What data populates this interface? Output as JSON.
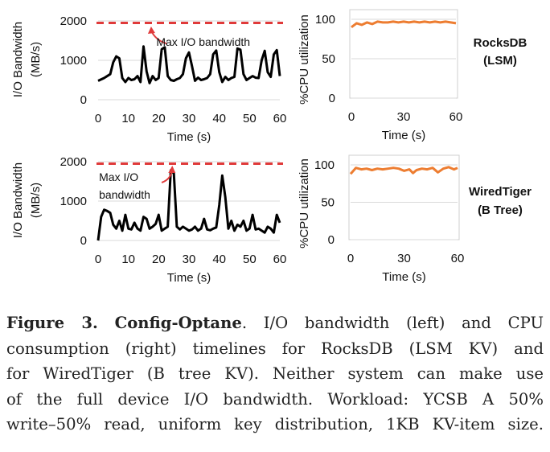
{
  "colors": {
    "io_line": "#000000",
    "cpu_line": "#ED7D31",
    "max_line": "#E03A3A",
    "grid": "#D9D9D9"
  },
  "chart_data": [
    {
      "type": "line",
      "system": "rocksdb",
      "xlabel": "Time (s)",
      "ylabel": "I/O Bandwidth (MB/s)",
      "ylabel_lines": [
        "I/O Bandwidth",
        "(MB/s)"
      ],
      "x_ticks": [
        "0",
        "10",
        "20",
        "30",
        "40",
        "50",
        "60"
      ],
      "y_ticks": [
        "0",
        "1000",
        "2000"
      ],
      "xlim": [
        0,
        60
      ],
      "ylim": [
        0,
        2000
      ],
      "max_bandwidth": 1950,
      "annotation": [
        "Max I/O bandwidth"
      ],
      "series": [
        {
          "x": [
            0,
            2,
            4,
            5,
            6,
            7,
            8,
            9,
            10,
            11,
            12,
            13,
            14,
            15,
            16,
            17,
            18,
            19,
            20,
            21,
            22,
            23,
            24,
            25,
            26,
            27,
            28,
            29,
            30,
            31,
            32,
            33,
            34,
            35,
            36,
            37,
            38,
            39,
            40,
            41,
            42,
            43,
            44,
            45,
            46,
            47,
            48,
            49,
            50,
            51,
            52,
            53,
            54,
            55,
            56,
            57,
            58,
            59,
            60
          ],
          "y": [
            480,
            550,
            650,
            950,
            1100,
            1050,
            550,
            450,
            550,
            500,
            520,
            600,
            450,
            1350,
            720,
            420,
            600,
            500,
            550,
            1280,
            1330,
            600,
            500,
            480,
            520,
            550,
            650,
            1050,
            1200,
            850,
            480,
            560,
            500,
            520,
            550,
            650,
            1150,
            1250,
            700,
            450,
            580,
            500,
            550,
            580,
            1300,
            1270,
            650,
            500,
            550,
            600,
            560,
            550,
            1000,
            1240,
            700,
            580,
            1150,
            1260,
            600
          ]
        }
      ]
    },
    {
      "type": "line",
      "system": "rocksdb",
      "xlabel": "Time (s)",
      "ylabel": "%CPU utilization",
      "x_ticks": [
        "0",
        "30",
        "60"
      ],
      "y_ticks": [
        "0",
        "50",
        "100"
      ],
      "xlim": [
        0,
        60
      ],
      "ylim": [
        0,
        100
      ],
      "series": [
        {
          "x": [
            0,
            3,
            6,
            9,
            12,
            15,
            18,
            21,
            24,
            27,
            30,
            33,
            36,
            39,
            42,
            45,
            48,
            51,
            54,
            57,
            60
          ],
          "y": [
            90,
            95,
            93,
            96,
            94,
            97,
            96,
            96,
            97,
            96,
            97,
            96,
            97,
            96,
            97,
            96,
            97,
            96,
            97,
            96,
            95
          ]
        }
      ]
    },
    {
      "type": "line",
      "system": "wiredtiger",
      "xlabel": "Time (s)",
      "ylabel": "I/O Bandwidth (MB/s)",
      "ylabel_lines": [
        "I/O Bandwidth",
        "(MB/s)"
      ],
      "x_ticks": [
        "0",
        "10",
        "20",
        "30",
        "40",
        "50",
        "60"
      ],
      "y_ticks": [
        "0",
        "1000",
        "2000"
      ],
      "xlim": [
        0,
        60
      ],
      "ylim": [
        0,
        2000
      ],
      "max_bandwidth": 1950,
      "annotation": [
        "Max I/O",
        "bandwidth"
      ],
      "series": [
        {
          "x": [
            0,
            1,
            2,
            3,
            4,
            5,
            6,
            7,
            8,
            9,
            10,
            11,
            12,
            13,
            14,
            15,
            16,
            17,
            18,
            19,
            20,
            21,
            22,
            23,
            24,
            25,
            26,
            27,
            28,
            29,
            30,
            31,
            32,
            33,
            34,
            35,
            36,
            37,
            38,
            39,
            40,
            41,
            42,
            43,
            44,
            45,
            46,
            47,
            48,
            49,
            50,
            51,
            52,
            53,
            54,
            55,
            56,
            57,
            58,
            59,
            60
          ],
          "y": [
            0,
            600,
            780,
            750,
            700,
            400,
            300,
            500,
            250,
            650,
            300,
            280,
            450,
            300,
            250,
            600,
            550,
            300,
            350,
            420,
            650,
            250,
            300,
            350,
            1780,
            1700,
            350,
            280,
            350,
            300,
            250,
            280,
            350,
            250,
            300,
            550,
            280,
            260,
            300,
            330,
            900,
            1650,
            1100,
            300,
            500,
            250,
            400,
            350,
            500,
            250,
            300,
            650,
            280,
            300,
            250,
            200,
            350,
            300,
            200,
            650,
            450
          ]
        }
      ]
    },
    {
      "type": "line",
      "system": "wiredtiger",
      "xlabel": "Time (s)",
      "ylabel": "%CPU utilization",
      "x_ticks": [
        "0",
        "30",
        "60"
      ],
      "y_ticks": [
        "0",
        "50",
        "100"
      ],
      "xlim": [
        0,
        60
      ],
      "ylim": [
        0,
        100
      ],
      "series": [
        {
          "x": [
            0,
            3,
            6,
            9,
            12,
            15,
            18,
            21,
            24,
            27,
            30,
            33,
            35,
            37,
            40,
            43,
            46,
            49,
            52,
            55,
            58,
            60
          ],
          "y": [
            88,
            96,
            94,
            95,
            93,
            95,
            94,
            95,
            96,
            95,
            92,
            94,
            89,
            93,
            95,
            94,
            96,
            90,
            95,
            97,
            94,
            96
          ]
        }
      ]
    }
  ],
  "labels": {
    "rocksdb": [
      "RocksDB",
      "(LSM)"
    ],
    "wiredtiger": [
      "WiredTiger",
      "(B Tree)"
    ]
  },
  "caption": {
    "fig": "Figure 3.",
    "name": "Config-Optane",
    "lines": [
      ". I/O bandwidth (left) and CPU",
      "consumption (right) timelines for RocksDB (LSM KV) and",
      "for WiredTiger (B tree KV). Neither system can make use",
      "of the full device I/O bandwidth. Workload: YCSB A 50%",
      "write–50% read, uniform key distribution, 1KB KV-item size."
    ]
  }
}
